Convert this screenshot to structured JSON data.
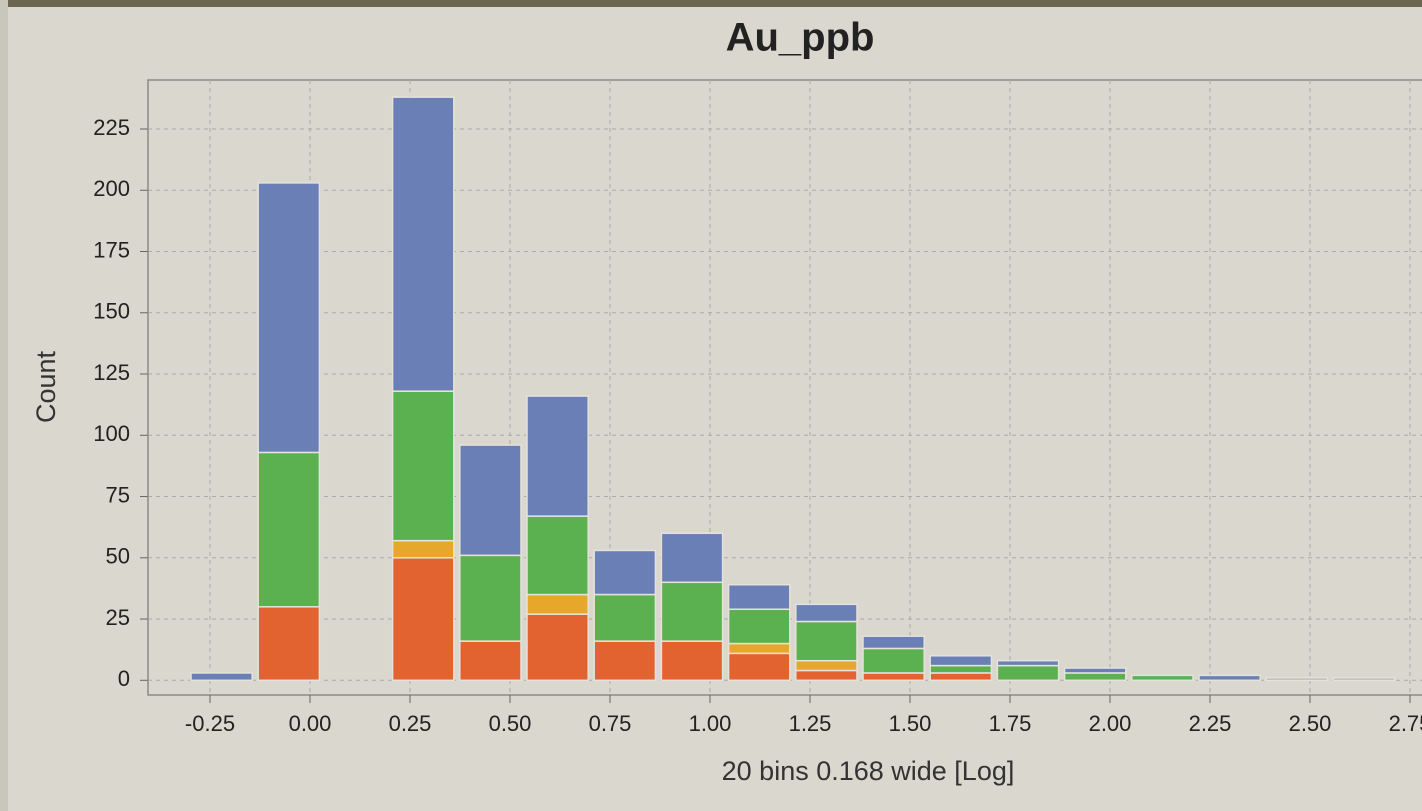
{
  "chart_data": {
    "type": "histogram",
    "title": "Au_ppb",
    "xlabel": "20 bins 0.168 wide [Log]",
    "ylabel": "Count",
    "bins": [
      -0.305,
      -0.137,
      0.031,
      0.199,
      0.367,
      0.535,
      0.703,
      0.871,
      1.039,
      1.207,
      1.375,
      1.543,
      1.711,
      1.879,
      2.047,
      2.215,
      2.383,
      2.551,
      2.719
    ],
    "series": [
      {
        "color": "#e2632f",
        "values": [
          0,
          30,
          0,
          50,
          16,
          27,
          16,
          16,
          11,
          4,
          3,
          3,
          0,
          0,
          0,
          0,
          0,
          0
        ]
      },
      {
        "color": "#e6a82a",
        "values": [
          0,
          0,
          0,
          7,
          0,
          8,
          0,
          0,
          4,
          4,
          0,
          0,
          0,
          0,
          0,
          0,
          0,
          0
        ]
      },
      {
        "color": "#5bb04f",
        "values": [
          0,
          63,
          0,
          61,
          35,
          32,
          19,
          24,
          14,
          16,
          10,
          3,
          6,
          3,
          2,
          0,
          0,
          0
        ]
      },
      {
        "color": "#6a7fb5",
        "values": [
          3,
          110,
          0,
          120,
          45,
          49,
          18,
          20,
          10,
          7,
          5,
          4,
          2,
          2,
          0,
          2,
          0,
          0
        ]
      },
      {
        "color": "#a9a9a9",
        "values": [
          0,
          0,
          0,
          0,
          0,
          0,
          0,
          0,
          0,
          0,
          0,
          0,
          0,
          0,
          0,
          0,
          1,
          1
        ]
      }
    ],
    "xlim": [
      -0.405,
      2.78
    ],
    "ylim": [
      -6,
      245
    ],
    "xticks": [
      -0.25,
      {
        "value": 0,
        "label": "0.00"
      },
      0.25,
      {
        "value": 0.5,
        "label": "0.50"
      },
      0.75,
      {
        "value": 1,
        "label": "1.00"
      },
      1.25,
      {
        "value": 1.5,
        "label": "1.50"
      },
      1.75,
      {
        "value": 2,
        "label": "2.00"
      },
      2.25,
      {
        "value": 2.5,
        "label": "2.50"
      },
      2.75
    ],
    "yticks": [
      0,
      25,
      50,
      75,
      100,
      125,
      150,
      175,
      200,
      225
    ],
    "grid": true
  }
}
